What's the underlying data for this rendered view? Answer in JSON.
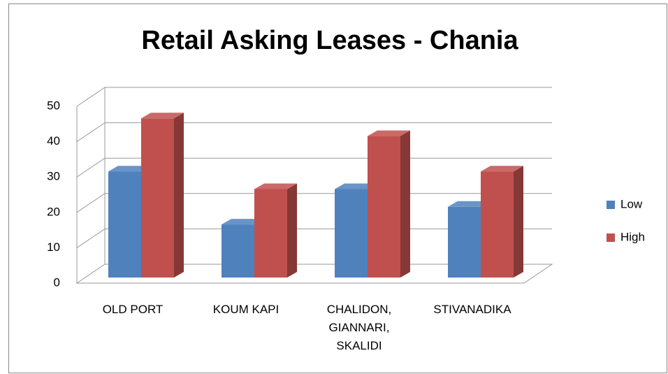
{
  "chart_data": {
    "type": "bar",
    "title": "Retail Asking Leases - Chania",
    "categories": [
      "OLD PORT",
      "KOUM KAPI",
      "CHALIDON, GIANNARI, SKALIDI",
      "STIVANADIKA"
    ],
    "series": [
      {
        "name": "Low",
        "color": "#4f81bd",
        "values": [
          30,
          15,
          25,
          20
        ]
      },
      {
        "name": "High",
        "color": "#c0504d",
        "values": [
          45,
          25,
          40,
          30
        ]
      }
    ],
    "ylim": [
      0,
      50
    ],
    "yticks": [
      0,
      10,
      20,
      30,
      40,
      50
    ],
    "grid": true,
    "legend": "right"
  }
}
